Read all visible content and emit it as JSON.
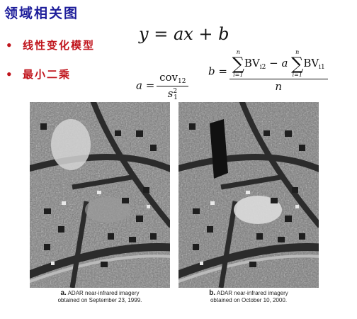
{
  "title": "领域相关图",
  "bullets": [
    {
      "marker": "•",
      "text": "线性变化模型"
    },
    {
      "marker": "•",
      "text": "最小二乘"
    }
  ],
  "equation_main": {
    "y": "y",
    "eq": " = ",
    "a": "a",
    "x": "x",
    "plus": " + ",
    "b": "b"
  },
  "equation_a": {
    "lhs": "a",
    "eq": " = ",
    "num": "cov",
    "num_sub": "12",
    "den": "s",
    "den_sub": "1",
    "den_sup": "2"
  },
  "equation_b": {
    "lhs": "b",
    "eq": " = ",
    "sum_top": "n",
    "sum_bottom": "i=1",
    "term1": "BV",
    "term1_sub": "i2",
    "minus": " − ",
    "coef": "a",
    "term2": "BV",
    "term2_sub": "i1",
    "den": "n"
  },
  "images": [
    {
      "letter": "a.",
      "line1": "ADAR near-infrared imagery",
      "line2": "obtained on September 23, 1999."
    },
    {
      "letter": "b.",
      "line1": "ADAR near-infrared imagery",
      "line2": "obtained on October 10, 2000."
    }
  ],
  "colors": {
    "title": "#1d1d9a",
    "bullet": "#c0141c"
  }
}
